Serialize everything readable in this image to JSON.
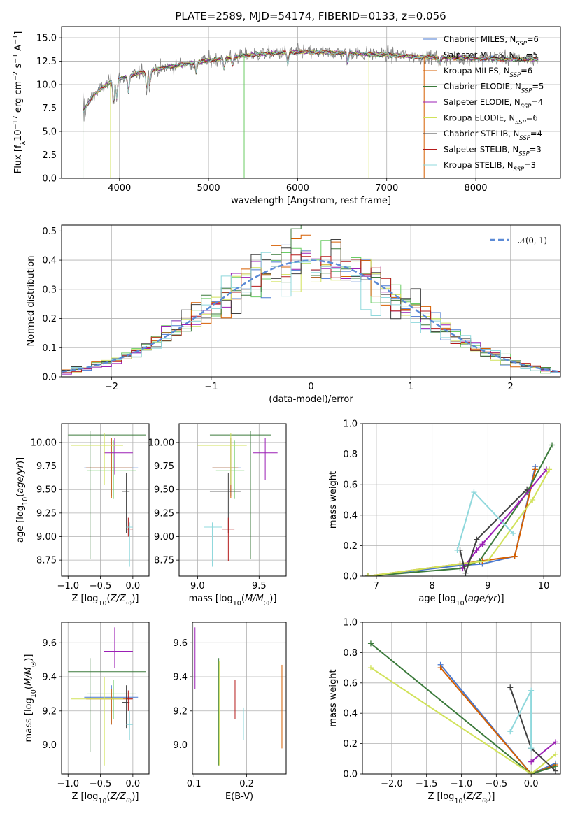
{
  "title": "PLATE=2589, MJD=54174, FIBERID=0133, z=0.056",
  "series": [
    {
      "name": "Chabrier MILES, N_SSP=6",
      "color": "#4878d0"
    },
    {
      "name": "Salpeter MILES, N_SSP=5",
      "color": "#6acc64"
    },
    {
      "name": "Kroupa MILES, N_SSP=6",
      "color": "#d65f00"
    },
    {
      "name": "Chabrier ELODIE, N_SSP=5",
      "color": "#3b7a3b"
    },
    {
      "name": "Salpeter ELODIE, N_SSP=4",
      "color": "#9b1fb5"
    },
    {
      "name": "Kroupa ELODIE, N_SSP=6",
      "color": "#d1e25a"
    },
    {
      "name": "Chabrier STELIB, N_SSP=4",
      "color": "#404040"
    },
    {
      "name": "Salpeter STELIB, N_SSP=3",
      "color": "#b51a1a"
    },
    {
      "name": "Kroupa STELIB, N_SSP=3",
      "color": "#8fd8dc"
    }
  ],
  "legend_labels": [
    {
      "pre": "Chabrier MILES, N",
      "sub": "SSP",
      "post": "=6"
    },
    {
      "pre": "Salpeter MILES, N",
      "sub": "SSP",
      "post": "=5"
    },
    {
      "pre": "Kroupa MILES, N",
      "sub": "SSP",
      "post": "=6"
    },
    {
      "pre": "Chabrier ELODIE, N",
      "sub": "SSP",
      "post": "=5"
    },
    {
      "pre": "Salpeter ELODIE, N",
      "sub": "SSP",
      "post": "=4"
    },
    {
      "pre": "Kroupa ELODIE, N",
      "sub": "SSP",
      "post": "=6"
    },
    {
      "pre": "Chabrier STELIB, N",
      "sub": "SSP",
      "post": "=4"
    },
    {
      "pre": "Salpeter STELIB, N",
      "sub": "SSP",
      "post": "=3"
    },
    {
      "pre": "Kroupa STELIB, N",
      "sub": "SSP",
      "post": "=3"
    }
  ],
  "chart_data": [
    {
      "id": "spectrum",
      "type": "line",
      "xlabel": "wavelength [Angstrom, rest frame]",
      "ylabel": "Flux [f_λ 10^-17 erg cm^-2 s^-1 A^-1]",
      "xlim": [
        3350,
        8950
      ],
      "ylim": [
        0,
        16.2
      ],
      "xticks": [
        4000,
        5000,
        6000,
        7000,
        8000
      ],
      "yticks": [
        0.0,
        2.5,
        5.0,
        7.5,
        10.0,
        12.5,
        15.0
      ],
      "ytick_labels": [
        "0.0",
        "2.5",
        "5.0",
        "7.5",
        "10.0",
        "12.5",
        "15.0"
      ],
      "data_range": [
        3590,
        8700
      ],
      "data_shape_x": [
        3590,
        3650,
        3700,
        3800,
        3900,
        4000,
        4200,
        4500,
        4800,
        5000,
        5500,
        6000,
        6500,
        7000,
        7500,
        8000,
        8700
      ],
      "data_shape_y": [
        7.2,
        8.0,
        8.8,
        9.6,
        10.3,
        10.6,
        11.2,
        11.8,
        12.3,
        12.6,
        13.2,
        13.5,
        13.4,
        13.2,
        12.9,
        12.8,
        12.7
      ]
    },
    {
      "id": "residuals",
      "type": "histogram",
      "xlabel": "(data-model)/error",
      "ylabel": "Normed distribution",
      "xlim": [
        -2.5,
        2.5
      ],
      "ylim": [
        0,
        0.52
      ],
      "xticks": [
        -2,
        -1,
        0,
        1,
        2
      ],
      "xtick_labels": [
        "−2",
        "−1",
        "0",
        "1",
        "2"
      ],
      "yticks": [
        0.0,
        0.1,
        0.2,
        0.3,
        0.4,
        0.5
      ],
      "ytick_labels": [
        "0.0",
        "0.1",
        "0.2",
        "0.3",
        "0.4",
        "0.5"
      ],
      "bin_width": 0.1,
      "reference": "N(0,1)"
    },
    {
      "id": "age_vs_Z",
      "type": "scatter",
      "xlabel": "Z [log10(Z/Z☉)]",
      "ylabel": "age [log10(age/yr)]",
      "xlim": [
        -1.1,
        0.25
      ],
      "ylim": [
        8.58,
        10.2
      ],
      "xticks": [
        -1.0,
        -0.5,
        0.0
      ],
      "xtick_labels": [
        "−1.0",
        "−0.5",
        "0.0"
      ],
      "yticks": [
        8.75,
        9.0,
        9.25,
        9.5,
        9.75,
        10.0
      ],
      "ytick_labels": [
        "8.75",
        "9.00",
        "9.25",
        "9.50",
        "9.75",
        "10.00"
      ],
      "points": [
        {
          "s": 0,
          "x": -0.33,
          "y": 9.73,
          "xe": [
            -0.75,
            0.08
          ],
          "ye": [
            9.43,
            10.05
          ]
        },
        {
          "s": 1,
          "x": -0.3,
          "y": 9.7,
          "xe": [
            -0.7,
            0.05
          ],
          "ye": [
            9.4,
            10.02
          ]
        },
        {
          "s": 2,
          "x": -0.33,
          "y": 9.73,
          "xe": [
            -0.72,
            -0.02
          ],
          "ye": [
            9.41,
            10.05
          ]
        },
        {
          "s": 3,
          "x": -0.66,
          "y": 10.08,
          "xe": [
            -1.0,
            0.2
          ],
          "ye": [
            8.76,
            10.12
          ]
        },
        {
          "s": 4,
          "x": -0.28,
          "y": 9.89,
          "xe": [
            -0.45,
            0.0
          ],
          "ye": [
            9.66,
            10.05
          ]
        },
        {
          "s": 5,
          "x": -0.44,
          "y": 9.97,
          "xe": [
            -0.95,
            -0.15
          ],
          "ye": [
            9.55,
            10.1
          ]
        },
        {
          "s": 6,
          "x": -0.1,
          "y": 9.48,
          "xe": [
            -0.17,
            -0.05
          ],
          "ye": [
            9.04,
            9.68
          ]
        },
        {
          "s": 7,
          "x": -0.07,
          "y": 9.08,
          "xe": [
            -0.1,
            0.0
          ],
          "ye": [
            9.0,
            9.2
          ]
        },
        {
          "s": 8,
          "x": -0.05,
          "y": 9.1,
          "xe": [
            -0.1,
            0.0
          ],
          "ye": [
            8.68,
            9.15
          ]
        },
        {
          "s": 9,
          "x": -0.27,
          "y": 9.28,
          "xe": [
            -0.6,
            0.05
          ],
          "ye": [
            9.15,
            9.4
          ]
        }
      ]
    },
    {
      "id": "age_vs_mass",
      "type": "scatter",
      "xlabel": "mass [log10(M/M☉)]",
      "ylabel": "",
      "xlim": [
        8.85,
        9.72
      ],
      "ylim": [
        8.58,
        10.2
      ],
      "xticks": [
        9.0,
        9.5
      ],
      "xtick_labels": [
        "9.0",
        "9.5"
      ],
      "yticks": [
        8.75,
        9.0,
        9.25,
        9.5,
        9.75,
        10.0
      ],
      "ytick_labels": [
        "8.75",
        "9.00",
        "9.25",
        "9.50",
        "9.75",
        "10.00"
      ],
      "points": [
        {
          "s": 0,
          "x": 9.27,
          "y": 9.73,
          "xe": [
            9.12,
            9.35
          ],
          "ye": [
            9.43,
            10.05
          ]
        },
        {
          "s": 1,
          "x": 9.3,
          "y": 9.7,
          "xe": [
            9.15,
            9.38
          ],
          "ye": [
            9.4,
            10.02
          ]
        },
        {
          "s": 2,
          "x": 9.27,
          "y": 9.73,
          "xe": [
            9.12,
            9.33
          ],
          "ye": [
            9.41,
            10.05
          ]
        },
        {
          "s": 3,
          "x": 9.43,
          "y": 10.08,
          "xe": [
            9.1,
            9.6
          ],
          "ye": [
            8.76,
            10.12
          ]
        },
        {
          "s": 4,
          "x": 9.55,
          "y": 9.89,
          "xe": [
            9.45,
            9.65
          ],
          "ye": [
            9.6,
            10.05
          ]
        },
        {
          "s": 5,
          "x": 9.27,
          "y": 9.97,
          "xe": [
            9.0,
            9.4
          ],
          "ye": [
            9.55,
            10.1
          ]
        },
        {
          "s": 6,
          "x": 9.25,
          "y": 9.48,
          "xe": [
            9.1,
            9.35
          ],
          "ye": [
            9.04,
            9.68
          ]
        },
        {
          "s": 7,
          "x": 9.25,
          "y": 9.08,
          "xe": [
            9.2,
            9.3
          ],
          "ye": [
            8.74,
            9.2
          ]
        },
        {
          "s": 8,
          "x": 9.12,
          "y": 9.1,
          "xe": [
            9.05,
            9.2
          ],
          "ye": [
            8.68,
            9.15
          ]
        },
        {
          "s": 9,
          "x": 9.25,
          "y": 9.28,
          "xe": [
            9.1,
            9.45
          ],
          "ye": [
            9.15,
            9.4
          ]
        }
      ]
    },
    {
      "id": "weight_vs_age",
      "type": "line",
      "xlabel": "age [log10(age/yr)]",
      "ylabel": "mass weight",
      "xlim": [
        6.75,
        10.3
      ],
      "ylim": [
        0,
        1.0
      ],
      "xticks": [
        7,
        8,
        9,
        10
      ],
      "xtick_labels": [
        "7",
        "8",
        "9",
        "10"
      ],
      "yticks": [
        0.0,
        0.2,
        0.4,
        0.6,
        0.8,
        1.0
      ],
      "ytick_labels": [
        "0.0",
        "0.2",
        "0.4",
        "0.6",
        "0.8",
        "1.0"
      ],
      "lines": [
        {
          "s": 0,
          "x": [
            6.85,
            8.5,
            8.9,
            9.48,
            9.85
          ],
          "y": [
            0.0,
            0.07,
            0.08,
            0.13,
            0.72
          ]
        },
        {
          "s": 2,
          "x": [
            6.85,
            8.5,
            8.9,
            9.48,
            9.85
          ],
          "y": [
            0.0,
            0.08,
            0.1,
            0.13,
            0.7
          ]
        },
        {
          "s": 3,
          "x": [
            6.85,
            8.5,
            8.85,
            9.7,
            10.15
          ],
          "y": [
            0.0,
            0.05,
            0.1,
            0.55,
            0.86
          ]
        },
        {
          "s": 4,
          "x": [
            8.55,
            8.8,
            8.9,
            9.55,
            10.05
          ],
          "y": [
            0.05,
            0.17,
            0.21,
            0.48,
            0.7
          ]
        },
        {
          "s": 5,
          "x": [
            6.85,
            8.5,
            9.0,
            9.8,
            10.1
          ],
          "y": [
            0.0,
            0.08,
            0.1,
            0.5,
            0.7
          ]
        },
        {
          "s": 6,
          "x": [
            8.5,
            8.6,
            8.8,
            9.7
          ],
          "y": [
            0.17,
            0.02,
            0.24,
            0.57
          ]
        },
        {
          "s": 9,
          "x": [
            6.85,
            8.0,
            8.75,
            9.5
          ],
          "y": [
            0.0,
            0.07,
            0.32,
            0.55
          ]
        },
        {
          "s": 8,
          "x": [
            8.45,
            8.75,
            9.45
          ],
          "y": [
            0.17,
            0.55,
            0.28
          ]
        }
      ]
    },
    {
      "id": "mass_vs_Z",
      "type": "scatter",
      "xlabel": "Z [log10(Z/Z☉)]",
      "ylabel": "mass [log10(M/M☉)]",
      "xlim": [
        -1.1,
        0.25
      ],
      "ylim": [
        8.83,
        9.72
      ],
      "xticks": [
        -1.0,
        -0.5,
        0.0
      ],
      "xtick_labels": [
        "−1.0",
        "−0.5",
        "0.0"
      ],
      "yticks": [
        9.0,
        9.2,
        9.4,
        9.6
      ],
      "ytick_labels": [
        "9.0",
        "9.2",
        "9.4",
        "9.6"
      ],
      "points": [
        {
          "s": 0,
          "x": -0.33,
          "y": 9.28,
          "xe": [
            -0.75,
            0.08
          ],
          "ye": [
            9.12,
            9.35
          ]
        },
        {
          "s": 1,
          "x": -0.3,
          "y": 9.3,
          "xe": [
            -0.7,
            0.05
          ],
          "ye": [
            9.15,
            9.38
          ]
        },
        {
          "s": 2,
          "x": -0.33,
          "y": 9.27,
          "xe": [
            -0.72,
            -0.02
          ],
          "ye": [
            9.12,
            9.33
          ]
        },
        {
          "s": 3,
          "x": -0.66,
          "y": 9.43,
          "xe": [
            -1.0,
            0.2
          ],
          "ye": [
            8.96,
            9.51
          ]
        },
        {
          "s": 4,
          "x": -0.28,
          "y": 9.55,
          "xe": [
            -0.45,
            0.0
          ],
          "ye": [
            9.45,
            9.69
          ]
        },
        {
          "s": 5,
          "x": -0.44,
          "y": 9.27,
          "xe": [
            -0.95,
            -0.15
          ],
          "ye": [
            8.88,
            9.4
          ]
        },
        {
          "s": 6,
          "x": -0.1,
          "y": 9.25,
          "xe": [
            -0.17,
            -0.05
          ],
          "ye": [
            9.1,
            9.35
          ]
        },
        {
          "s": 7,
          "x": -0.07,
          "y": 9.27,
          "xe": [
            -0.1,
            0.0
          ],
          "ye": [
            9.2,
            9.32
          ]
        },
        {
          "s": 8,
          "x": -0.05,
          "y": 9.12,
          "xe": [
            -0.1,
            0.0
          ],
          "ye": [
            9.03,
            9.2
          ]
        },
        {
          "s": 9,
          "x": -0.27,
          "y": 9.15,
          "xe": [
            -0.6,
            0.05
          ],
          "ye": [
            9.0,
            9.32
          ]
        }
      ]
    },
    {
      "id": "mass_vs_ebv",
      "type": "scatter",
      "xlabel": "E(B-V)",
      "ylabel": "",
      "xlim": [
        0.097,
        0.275
      ],
      "ylim": [
        8.83,
        9.72
      ],
      "xticks": [
        0.1,
        0.2
      ],
      "xtick_labels": [
        "0.1",
        "0.2"
      ],
      "yticks": [
        9.0,
        9.2,
        9.4,
        9.6
      ],
      "ytick_labels": [
        "9.0",
        "9.2",
        "9.4",
        "9.6"
      ],
      "points": [
        {
          "s": 3,
          "x": 0.147,
          "y": 9.2,
          "ye": [
            8.88,
            9.51
          ]
        },
        {
          "s": 4,
          "x": 0.102,
          "y": 9.5,
          "ye": [
            9.33,
            9.69
          ]
        },
        {
          "s": 5,
          "x": 0.148,
          "y": 9.2,
          "ye": [
            8.88,
            9.49
          ]
        },
        {
          "s": 7,
          "x": 0.178,
          "y": 9.27,
          "ye": [
            9.15,
            9.38
          ]
        },
        {
          "s": 8,
          "x": 0.194,
          "y": 9.12,
          "ye": [
            9.03,
            9.22
          ]
        },
        {
          "s": 2,
          "x": 0.267,
          "y": 9.2,
          "ye": [
            8.98,
            9.47
          ]
        },
        {
          "s": 9,
          "x": 0.267,
          "y": 9.3,
          "ye": [
            9.0,
            9.54
          ]
        }
      ]
    },
    {
      "id": "weight_vs_Z",
      "type": "line",
      "xlabel": "Z [log10(Z/Z☉)]",
      "ylabel": "mass weight",
      "xlim": [
        -2.42,
        0.42
      ],
      "ylim": [
        0,
        1.0
      ],
      "xticks": [
        -2.0,
        -1.5,
        -1.0,
        -0.5,
        0.0
      ],
      "xtick_labels": [
        "−2.0",
        "−1.5",
        "−1.0",
        "−0.5",
        "0.0"
      ],
      "yticks": [
        0.0,
        0.2,
        0.4,
        0.6,
        0.8,
        1.0
      ],
      "ytick_labels": [
        "0.0",
        "0.2",
        "0.4",
        "0.6",
        "0.8",
        "1.0"
      ],
      "lines": [
        {
          "s": 0,
          "x": [
            -1.3,
            0.0,
            0.35
          ],
          "y": [
            0.72,
            0.0,
            0.07
          ]
        },
        {
          "s": 2,
          "x": [
            -1.3,
            0.0,
            0.35
          ],
          "y": [
            0.7,
            0.0,
            0.06
          ]
        },
        {
          "s": 3,
          "x": [
            -2.3,
            0.0,
            0.35
          ],
          "y": [
            0.86,
            0.0,
            0.05
          ]
        },
        {
          "s": 5,
          "x": [
            -2.3,
            0.0,
            0.35
          ],
          "y": [
            0.7,
            0.0,
            0.13
          ]
        },
        {
          "s": 4,
          "x": [
            0.0,
            0.35
          ],
          "y": [
            0.08,
            0.21
          ]
        },
        {
          "s": 6,
          "x": [
            -0.3,
            0.0,
            0.35
          ],
          "y": [
            0.57,
            0.17,
            0.02
          ]
        },
        {
          "s": 9,
          "x": [
            -1.3,
            0.0,
            0.35
          ],
          "y": [
            0.55,
            0.0,
            0.32
          ]
        },
        {
          "s": 8,
          "x": [
            -0.3,
            0.0,
            0.0
          ],
          "y": [
            0.28,
            0.55,
            0.17
          ]
        }
      ]
    }
  ]
}
